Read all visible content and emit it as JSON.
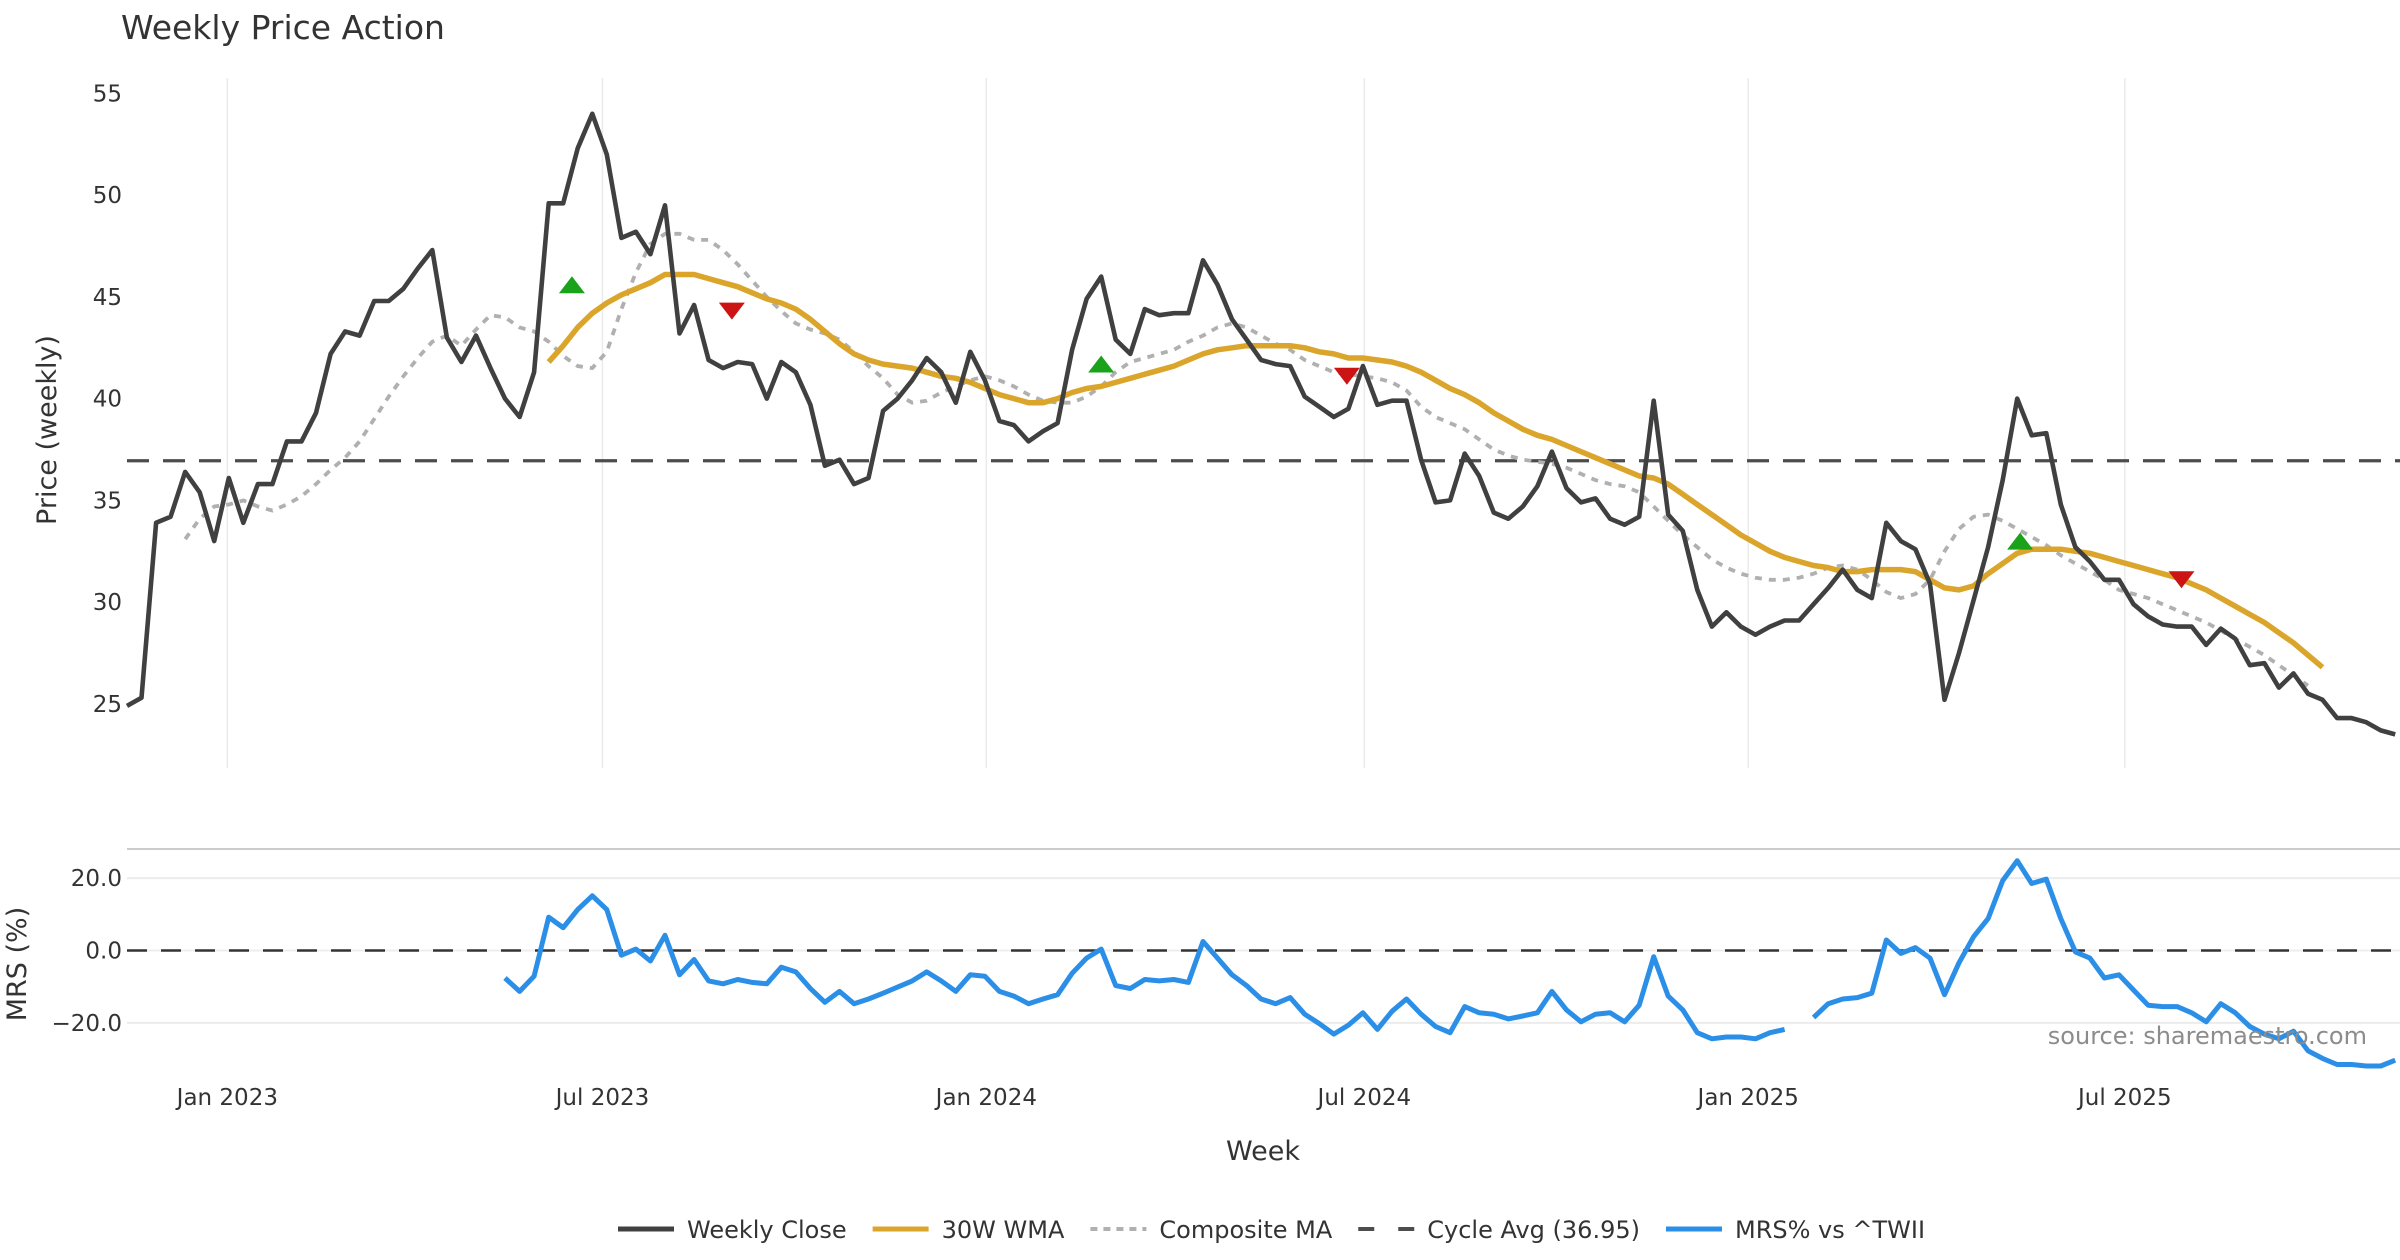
{
  "chart_data": [
    {
      "type": "line",
      "title": "Weekly Price Action",
      "xlabel": "Week",
      "ylabel": "Price (weekly)",
      "ylim": [
        21.7,
        56.2
      ],
      "yticks": [
        "25",
        "30",
        "35",
        "40",
        "45",
        "50",
        "55"
      ],
      "ytick_values": [
        25,
        30,
        35,
        40,
        45,
        50,
        55
      ],
      "x_unit": "week index",
      "xlim": [
        0,
        157
      ],
      "xticks": [
        {
          "label": "Jan 2023",
          "x": 6.9
        },
        {
          "label": "Jul 2023",
          "x": 32.7
        },
        {
          "label": "Jan 2024",
          "x": 59.1
        },
        {
          "label": "Jul 2024",
          "x": 85.1
        },
        {
          "label": "Jan 2025",
          "x": 111.5
        },
        {
          "label": "Jul 2025",
          "x": 137.4
        }
      ],
      "grid": "vertical",
      "series": [
        {
          "name": "Weekly Close",
          "color": "#404040",
          "style": "solid",
          "start": 0,
          "values": [
            24.9,
            25.3,
            33.9,
            34.2,
            36.4,
            35.4,
            33.0,
            36.1,
            33.9,
            35.8,
            35.8,
            37.9,
            37.9,
            39.3,
            42.2,
            43.3,
            43.1,
            44.8,
            44.8,
            45.4,
            46.4,
            47.3,
            43.0,
            41.8,
            43.1,
            41.5,
            40.0,
            39.1,
            41.3,
            49.6,
            49.6,
            52.3,
            54.0,
            52.0,
            47.9,
            48.2,
            47.1,
            49.5,
            43.2,
            44.6,
            41.9,
            41.5,
            41.8,
            41.7,
            40.0,
            41.8,
            41.3,
            39.7,
            36.7,
            37.0,
            35.8,
            36.1,
            39.4,
            40.0,
            40.9,
            42.0,
            41.3,
            39.8,
            42.3,
            40.9,
            38.9,
            38.7,
            37.9,
            38.4,
            38.8,
            42.4,
            44.9,
            46.0,
            42.9,
            42.2,
            44.4,
            44.1,
            44.2,
            44.2,
            46.8,
            45.6,
            43.9,
            42.9,
            41.9,
            41.7,
            41.6,
            40.1,
            39.6,
            39.1,
            39.5,
            41.6,
            39.7,
            39.9,
            39.9,
            37.0,
            34.9,
            35.0,
            37.3,
            36.2,
            34.4,
            34.1,
            34.7,
            35.7,
            37.4,
            35.6,
            34.9,
            35.1,
            34.1,
            33.8,
            34.2,
            39.9,
            34.3,
            33.5,
            30.6,
            28.8,
            29.5,
            28.8,
            28.4,
            28.8,
            29.1,
            29.1,
            29.9,
            30.7,
            31.6,
            30.6,
            30.2,
            33.9,
            33.0,
            32.6,
            30.9,
            25.2,
            27.5,
            30.1,
            32.7,
            36.0,
            40.0,
            38.2,
            38.3,
            34.8,
            32.7,
            32.0,
            31.1,
            31.1,
            29.9,
            29.3,
            28.9,
            28.8,
            28.8,
            27.9,
            28.7,
            28.2,
            26.9,
            27.0,
            25.8,
            26.5,
            25.5,
            25.2,
            24.3,
            24.3,
            24.1,
            23.7,
            23.5
          ]
        },
        {
          "name": "30W WMA",
          "color": "#DAA52A",
          "style": "solid",
          "start": 29,
          "values": [
            41.8,
            42.6,
            43.5,
            44.2,
            44.7,
            45.1,
            45.4,
            45.7,
            46.1,
            46.1,
            46.1,
            45.9,
            45.7,
            45.5,
            45.2,
            44.9,
            44.7,
            44.4,
            43.9,
            43.3,
            42.7,
            42.2,
            41.9,
            41.7,
            41.6,
            41.5,
            41.3,
            41.1,
            41.0,
            40.8,
            40.5,
            40.2,
            40.0,
            39.8,
            39.8,
            40.0,
            40.3,
            40.5,
            40.6,
            40.8,
            41.0,
            41.2,
            41.4,
            41.6,
            41.9,
            42.2,
            42.4,
            42.5,
            42.6,
            42.6,
            42.6,
            42.6,
            42.5,
            42.3,
            42.2,
            42.0,
            42.0,
            41.9,
            41.8,
            41.6,
            41.3,
            40.9,
            40.5,
            40.2,
            39.8,
            39.3,
            38.9,
            38.5,
            38.2,
            38.0,
            37.7,
            37.4,
            37.1,
            36.8,
            36.5,
            36.2,
            36.1,
            35.8,
            35.3,
            34.8,
            34.3,
            33.8,
            33.3,
            32.9,
            32.5,
            32.2,
            32.0,
            31.8,
            31.7,
            31.5,
            31.5,
            31.6,
            31.6,
            31.6,
            31.5,
            31.1,
            30.7,
            30.6,
            30.8,
            31.4,
            31.9,
            32.4,
            32.6,
            32.6,
            32.6,
            32.5,
            32.4,
            32.2,
            32.0,
            31.8,
            31.6,
            31.4,
            31.2,
            30.9,
            30.6,
            30.2,
            29.8,
            29.4,
            29.0,
            28.5,
            28.0,
            27.4,
            26.8
          ]
        },
        {
          "name": "Composite MA",
          "color": "#B0B0B0",
          "style": "dotted",
          "start": 4,
          "values": [
            33.1,
            34.1,
            34.7,
            34.8,
            35.0,
            34.7,
            34.5,
            34.8,
            35.2,
            35.8,
            36.5,
            37.1,
            37.9,
            39.0,
            40.1,
            41.1,
            42.0,
            42.8,
            43.1,
            42.6,
            43.4,
            44.1,
            44.0,
            43.5,
            43.3,
            42.8,
            42.1,
            41.6,
            41.5,
            42.3,
            44.4,
            46.2,
            47.6,
            48.1,
            48.1,
            47.8,
            47.8,
            47.3,
            46.6,
            45.8,
            45.0,
            44.3,
            43.7,
            43.4,
            43.2,
            42.9,
            42.3,
            41.6,
            41.0,
            40.2,
            39.8,
            39.9,
            40.3,
            40.6,
            40.9,
            41.1,
            40.9,
            40.6,
            40.2,
            39.9,
            39.8,
            39.8,
            40.1,
            40.6,
            41.3,
            41.8,
            42.0,
            42.2,
            42.4,
            42.8,
            43.1,
            43.5,
            43.7,
            43.5,
            43.1,
            42.7,
            42.4,
            41.9,
            41.6,
            41.3,
            41.2,
            41.1,
            41.0,
            40.8,
            40.4,
            39.6,
            39.1,
            38.8,
            38.5,
            38.0,
            37.5,
            37.2,
            37.0,
            36.9,
            36.8,
            36.6,
            36.3,
            36.0,
            35.8,
            35.7,
            35.4,
            34.7,
            34.0,
            33.3,
            32.7,
            32.1,
            31.7,
            31.4,
            31.2,
            31.1,
            31.1,
            31.2,
            31.4,
            31.7,
            31.8,
            31.6,
            31.1,
            30.5,
            30.2,
            30.4,
            31.1,
            32.5,
            33.6,
            34.2,
            34.3,
            34.0,
            33.6,
            33.2,
            32.8,
            32.3,
            31.9,
            31.5,
            31.1,
            30.6,
            30.4,
            30.2,
            29.9,
            29.6,
            29.3,
            29.0,
            28.6,
            28.2,
            27.8,
            27.4,
            26.9,
            26.4,
            25.9
          ]
        },
        {
          "name": "Cycle Avg (36.95)",
          "color": "#4D4D4D",
          "style": "dashed",
          "constant": 36.95
        }
      ],
      "markers": [
        {
          "type": "buy",
          "shape": "triangle-up",
          "color": "#1AA31A",
          "x": 30.6,
          "y": 45.6
        },
        {
          "type": "sell",
          "shape": "triangle-down",
          "color": "#CC1414",
          "x": 41.6,
          "y": 44.3
        },
        {
          "type": "buy",
          "shape": "triangle-up",
          "color": "#1AA31A",
          "x": 67.0,
          "y": 41.7
        },
        {
          "type": "sell",
          "shape": "triangle-down",
          "color": "#CC1414",
          "x": 83.9,
          "y": 41.1
        },
        {
          "type": "buy",
          "shape": "triangle-up",
          "color": "#1AA31A",
          "x": 130.2,
          "y": 33.0
        },
        {
          "type": "sell",
          "shape": "triangle-down",
          "color": "#CC1414",
          "x": 141.3,
          "y": 31.1
        }
      ]
    },
    {
      "type": "line",
      "title": "",
      "xlabel": "Week",
      "ylabel": "MRS (%)",
      "ylim": [
        -35,
        28
      ],
      "yticks": [
        "−20.0",
        "0.0",
        "20.0"
      ],
      "ytick_values": [
        -20,
        0,
        20
      ],
      "series": [
        {
          "name": "MRS% vs ^TWII",
          "color": "#2B8FE8",
          "style": "solid",
          "start": 26,
          "values": [
            -7.6,
            -11.3,
            -7.1,
            9.2,
            6.3,
            11.3,
            15.1,
            11.3,
            -1.3,
            0.4,
            -2.9,
            4.2,
            -6.7,
            -2.5,
            -8.4,
            -9.2,
            -8.0,
            -8.8,
            -9.2,
            -4.6,
            -5.9,
            -10.5,
            -14.3,
            -11.3,
            -14.7,
            -13.4,
            -11.8,
            -10.1,
            -8.4,
            -5.9,
            -8.4,
            -11.3,
            -6.7,
            -7.1,
            -11.3,
            -12.6,
            -14.7,
            -13.4,
            -12.2,
            -6.3,
            -2.1,
            0.4,
            -9.7,
            -10.5,
            -8.0,
            -8.4,
            -8.0,
            -8.8,
            2.5,
            -2.1,
            -6.7,
            -9.7,
            -13.4,
            -14.7,
            -13.0,
            -17.6,
            -20.2,
            -23.1,
            -20.6,
            -17.2,
            -21.8,
            -16.8,
            -13.4,
            -17.6,
            -21.0,
            -22.7,
            -15.5,
            -17.2,
            -17.6,
            -18.9,
            -18.1,
            -17.2,
            -11.3,
            -16.4,
            -19.7,
            -17.6,
            -17.2,
            -19.7,
            -15.1,
            -1.7,
            -12.6,
            -16.4,
            -22.7,
            -24.4,
            -23.9,
            -23.9,
            -24.4,
            -22.7,
            -21.8,
            null,
            -18.5,
            -14.7,
            -13.4,
            -13.0,
            -11.8,
            2.9,
            -0.8,
            0.8,
            -2.1,
            -12.2,
            -3.4,
            3.8,
            8.8,
            19.3,
            24.8,
            18.5,
            19.7,
            8.8,
            -0.4,
            -2.1,
            -7.6,
            -6.7,
            -10.9,
            -15.1,
            -15.5,
            -15.5,
            -17.2,
            -19.7,
            -14.7,
            -17.2,
            -21.0,
            -23.1,
            -24.4,
            -22.3,
            -27.7,
            -29.8,
            -31.5,
            -31.5,
            -31.9,
            -31.9,
            -30.3
          ]
        },
        {
          "name": "zero-line",
          "color": "#333333",
          "style": "dashed",
          "constant": 0
        }
      ]
    }
  ],
  "legend": {
    "placement": "bottom-center",
    "items": [
      {
        "label": "Weekly Close",
        "color": "#404040",
        "style": "solid"
      },
      {
        "label": "30W WMA",
        "color": "#DAA52A",
        "style": "solid"
      },
      {
        "label": "Composite MA",
        "color": "#B0B0B0",
        "style": "dotted"
      },
      {
        "label": "Cycle Avg (36.95)",
        "color": "#4D4D4D",
        "style": "dashed"
      },
      {
        "label": "MRS% vs ^TWII",
        "color": "#2B8FE8",
        "style": "solid"
      }
    ]
  },
  "source": "source: sharemaestro.com"
}
